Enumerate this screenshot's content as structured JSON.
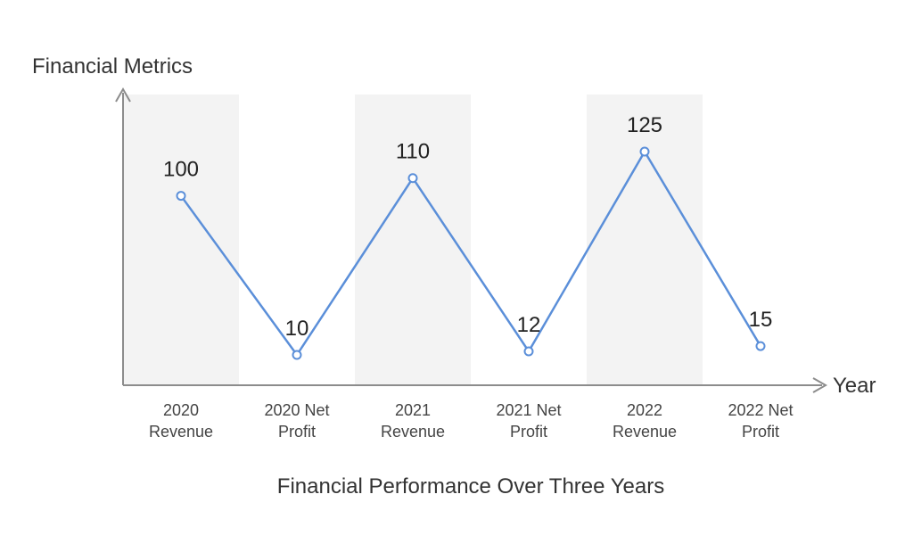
{
  "chart_data": {
    "type": "line",
    "title": "Financial Performance Over Three Years",
    "xlabel": "Year",
    "ylabel": "Financial Metrics",
    "categories": [
      "2020 Revenue",
      "2020 Net Profit",
      "2021 Revenue",
      "2021 Net Profit",
      "2022 Revenue",
      "2022 Net Profit"
    ],
    "category_lines": [
      [
        "2020",
        "Revenue"
      ],
      [
        "2020 Net",
        "Profit"
      ],
      [
        "2021",
        "Revenue"
      ],
      [
        "2021 Net",
        "Profit"
      ],
      [
        "2022",
        "Revenue"
      ],
      [
        "2022 Net",
        "Profit"
      ]
    ],
    "series": [
      {
        "values": [
          100,
          10,
          110,
          12,
          125,
          15
        ],
        "color": "#5b8fd9"
      }
    ],
    "data_label_colors": [
      "#222222",
      "#222222",
      "#222222",
      "#5b8fd9",
      "#222222",
      "#222222"
    ],
    "shaded_band_color": "#f3f3f3",
    "axis_color": "#8c8c8c",
    "grid": false,
    "legend": "none"
  }
}
